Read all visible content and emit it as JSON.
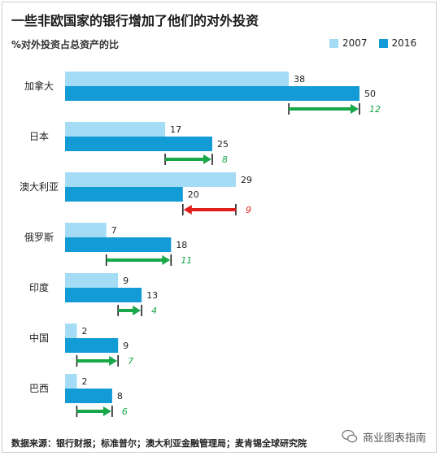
{
  "title": "一些非欧国家的银行增加了他们的对外投资",
  "subtitle": "%对外投资占总资产的比",
  "footer": "数据来源：银行财报；标准普尔；澳大利亚金融管理局；麦肯锡全球研究院",
  "watermark": "商业图表指南",
  "colors": {
    "s2007": "#a3dcf4",
    "s2016": "#139bd6",
    "up": "#18a84a",
    "down": "#e3201b"
  },
  "chart_data": {
    "type": "bar",
    "orientation": "horizontal",
    "title": "一些非欧国家的银行增加了他们的对外投资",
    "subtitle": "%对外投资占总资产的比",
    "categories": [
      "加拿大",
      "日本",
      "澳大利亚",
      "俄罗斯",
      "印度",
      "中国",
      "巴西"
    ],
    "series": [
      {
        "name": "2007",
        "values": [
          38,
          17,
          29,
          7,
          9,
          2,
          2
        ]
      },
      {
        "name": "2016",
        "values": [
          50,
          25,
          20,
          18,
          13,
          9,
          8
        ]
      }
    ],
    "differences": [
      12,
      8,
      9,
      11,
      4,
      7,
      6
    ],
    "xlim": [
      0,
      50
    ],
    "legend": "top-right",
    "grid": false
  }
}
